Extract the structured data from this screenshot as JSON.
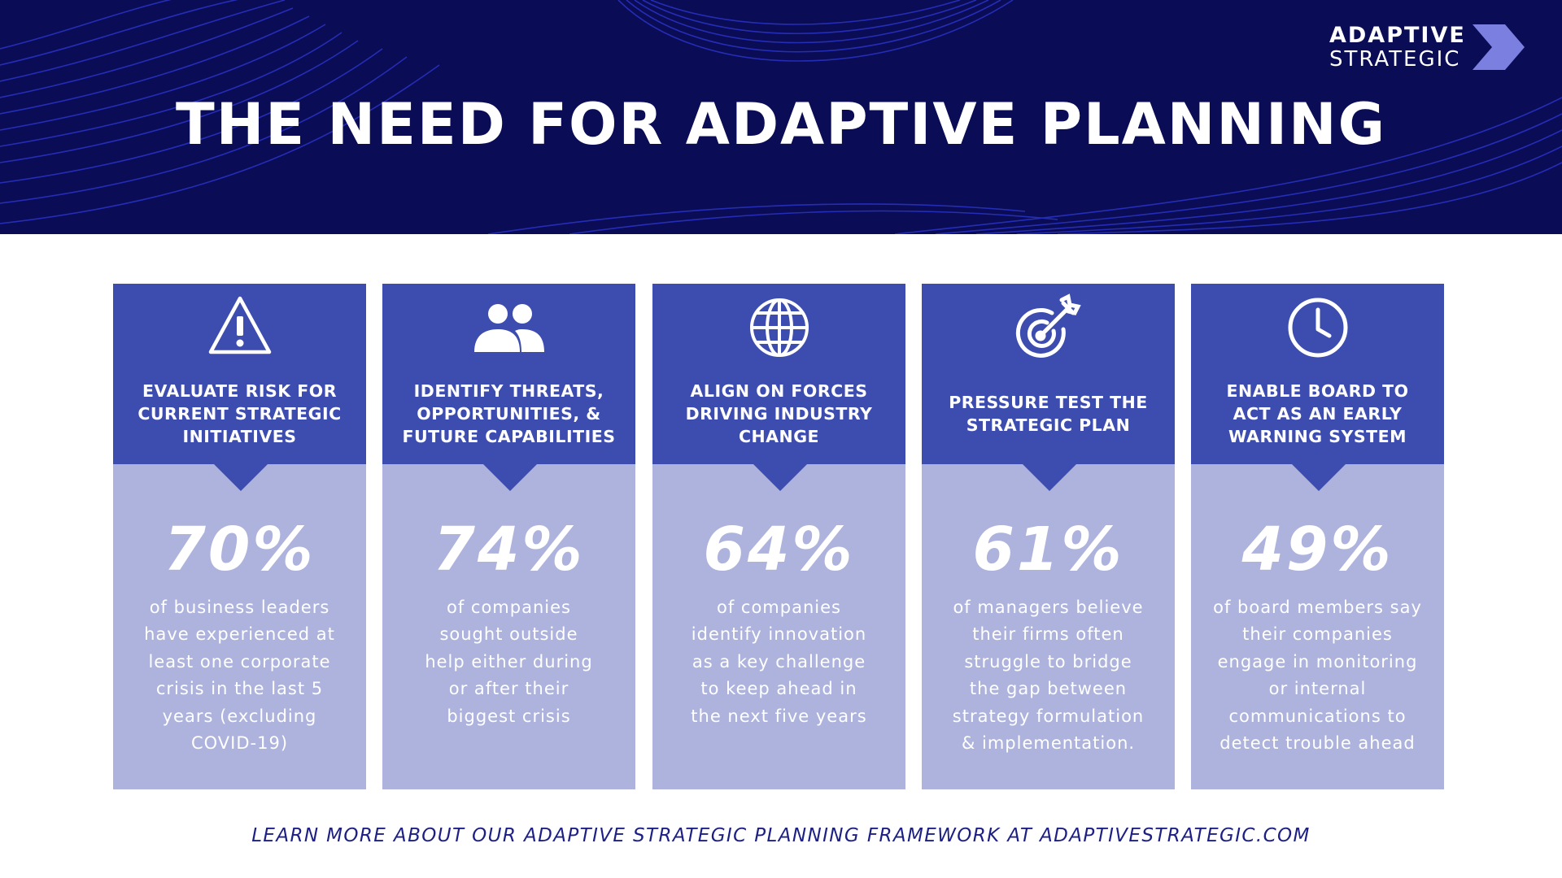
{
  "header": {
    "title": "THE NEED FOR ADAPTIVE PLANNING",
    "background_color": "#0a0c55"
  },
  "logo": {
    "line1": "ADAPTIVE",
    "line2": "STRATEGIC",
    "mark_icon": "chevron-arrow-icon",
    "mark_color": "#7b7fe0"
  },
  "cards": [
    {
      "icon": "warning-triangle-icon",
      "heading": "EVALUATE RISK FOR\nCURRENT STRATEGIC\nINITIATIVES",
      "stat": "70%",
      "description": "of business leaders\nhave experienced at\nleast one corporate\ncrisis in the last 5\nyears (excluding\nCOVID-19)"
    },
    {
      "icon": "people-icon",
      "heading": "IDENTIFY THREATS,\nOPPORTUNITIES, &\nFUTURE CAPABILITIES",
      "stat": "74%",
      "description": "of companies\nsought outside\nhelp either during\nor after their\nbiggest crisis"
    },
    {
      "icon": "globe-icon",
      "heading": "ALIGN ON  FORCES\nDRIVING INDUSTRY\nCHANGE",
      "stat": "64%",
      "description": "of companies\nidentify innovation\nas a key challenge\nto keep ahead in\nthe next five years"
    },
    {
      "icon": "target-arrow-icon",
      "heading": "PRESSURE TEST THE\nSTRATEGIC PLAN",
      "stat": "61%",
      "description": "of managers believe\ntheir firms often\nstruggle to bridge\nthe gap between\nstrategy formulation\n& implementation."
    },
    {
      "icon": "clock-icon",
      "heading": "ENABLE BOARD TO\nACT AS AN EARLY\nWARNING SYSTEM",
      "stat": "49%",
      "description": "of board members say\ntheir companies\nengage in monitoring\nor internal\ncommunications to\ndetect trouble ahead"
    }
  ],
  "colors": {
    "card_header": "#3d4caf",
    "card_body": "#aeb3dd",
    "footer_text": "#1c1f84"
  },
  "footer": {
    "text": "LEARN MORE ABOUT OUR ADAPTIVE STRATEGIC PLANNING FRAMEWORK AT ADAPTIVESTRATEGIC.COM"
  }
}
